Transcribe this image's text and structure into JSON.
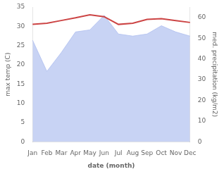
{
  "chart_data": {
    "type": "line",
    "xlabel": "date (month)",
    "ylabel": "max temp (C)",
    "y2label": "med. precipitation (kg/m2)",
    "categories": [
      "Jan",
      "Feb",
      "Mar",
      "Apr",
      "May",
      "Jun",
      "Jul",
      "Aug",
      "Sep",
      "Oct",
      "Nov",
      "Dec"
    ],
    "series": [
      {
        "type": "area",
        "axis": "y2",
        "color": "#aabbee",
        "values": [
          49,
          34,
          43,
          53,
          54,
          61,
          52,
          51,
          52,
          56,
          53,
          51
        ]
      },
      {
        "type": "line",
        "color": "#cc4444",
        "values": [
          30.5,
          30.8,
          31.5,
          32.2,
          33.0,
          32.5,
          30.5,
          30.8,
          31.8,
          32.0,
          31.5,
          31.0
        ]
      }
    ],
    "ylim": [
      0,
      35
    ],
    "yticks": [
      0,
      5,
      10,
      15,
      20,
      25,
      30,
      35
    ],
    "y2lim": [
      0,
      65
    ],
    "y2ticks": [
      0,
      10,
      20,
      30,
      40,
      50,
      60
    ],
    "grid": false
  }
}
